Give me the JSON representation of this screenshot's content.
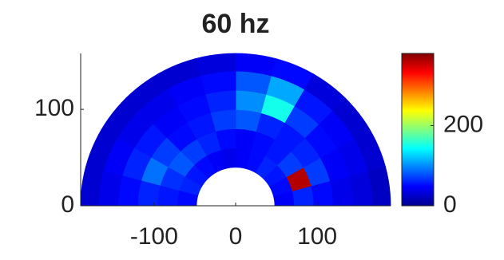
{
  "chart_data": {
    "type": "polar-heatmap",
    "title": "60 hz",
    "xlim": [
      -190,
      190
    ],
    "xticks": [
      -100,
      0,
      100
    ],
    "ylim": [
      0,
      158
    ],
    "yticks": [
      0,
      100
    ],
    "r_edges": [
      48,
      72,
      96,
      120,
      144,
      168,
      190
    ],
    "theta_edges": [
      0,
      15,
      30,
      45,
      60,
      75,
      90,
      105,
      120,
      135,
      150,
      165,
      180
    ],
    "values": [
      [
        45,
        50,
        55,
        60,
        50,
        45,
        40,
        45,
        50,
        55,
        60,
        50
      ],
      [
        60,
        360,
        70,
        55,
        50,
        45,
        50,
        60,
        70,
        80,
        65,
        55
      ],
      [
        50,
        70,
        60,
        55,
        60,
        80,
        70,
        55,
        50,
        70,
        90,
        60
      ],
      [
        40,
        45,
        50,
        70,
        150,
        100,
        60,
        50,
        45,
        55,
        60,
        50
      ],
      [
        35,
        40,
        45,
        55,
        110,
        80,
        50,
        45,
        40,
        40,
        45,
        40
      ],
      [
        25,
        30,
        30,
        35,
        50,
        45,
        35,
        30,
        30,
        30,
        30,
        30
      ]
    ],
    "colormap": "jet",
    "clim": [
      0,
      380
    ],
    "cticks": [
      0,
      200
    ]
  }
}
